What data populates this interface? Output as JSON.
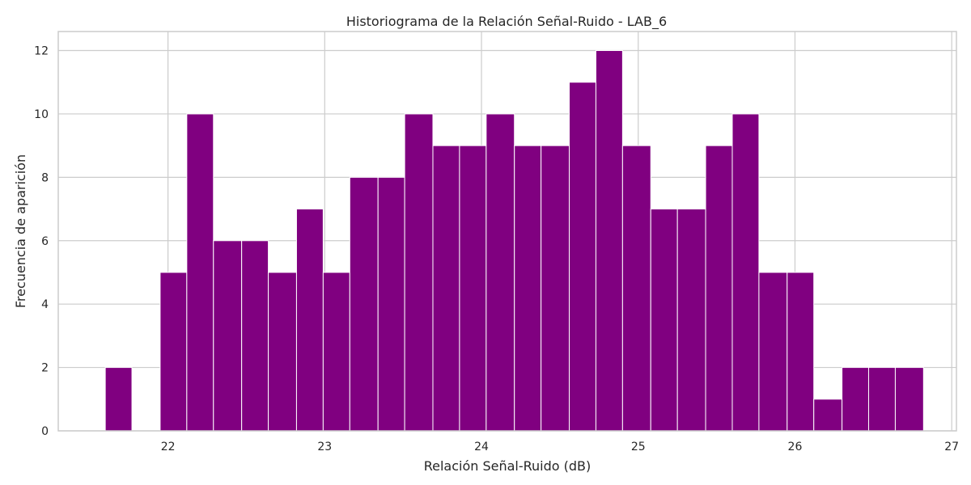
{
  "chart_data": {
    "type": "bar",
    "title": "Historiograma de la Relación Señal-Ruido - LAB_6",
    "xlabel": "Relación Señal-Ruido (dB)",
    "ylabel": "Frecuencia de aparición",
    "xlim": [
      21.3,
      27.03
    ],
    "ylim": [
      0,
      12.6
    ],
    "xticks": [
      22,
      23,
      24,
      25,
      26,
      27
    ],
    "yticks": [
      0,
      2,
      4,
      6,
      8,
      10,
      12
    ],
    "grid": true,
    "bar_color": "#800080",
    "bins": [
      {
        "x0": 21.6,
        "x1": 21.77,
        "value": 2
      },
      {
        "x0": 21.77,
        "x1": 21.95,
        "value": 0
      },
      {
        "x0": 21.95,
        "x1": 22.12,
        "value": 5
      },
      {
        "x0": 22.12,
        "x1": 22.29,
        "value": 10
      },
      {
        "x0": 22.29,
        "x1": 22.47,
        "value": 6
      },
      {
        "x0": 22.47,
        "x1": 22.64,
        "value": 6
      },
      {
        "x0": 22.64,
        "x1": 22.82,
        "value": 5
      },
      {
        "x0": 22.82,
        "x1": 22.99,
        "value": 7
      },
      {
        "x0": 22.99,
        "x1": 23.16,
        "value": 5
      },
      {
        "x0": 23.16,
        "x1": 23.34,
        "value": 8
      },
      {
        "x0": 23.34,
        "x1": 23.51,
        "value": 8
      },
      {
        "x0": 23.51,
        "x1": 23.69,
        "value": 10
      },
      {
        "x0": 23.69,
        "x1": 23.86,
        "value": 9
      },
      {
        "x0": 23.86,
        "x1": 24.03,
        "value": 9
      },
      {
        "x0": 24.03,
        "x1": 24.21,
        "value": 10
      },
      {
        "x0": 24.21,
        "x1": 24.38,
        "value": 9
      },
      {
        "x0": 24.38,
        "x1": 24.56,
        "value": 9
      },
      {
        "x0": 24.56,
        "x1": 24.73,
        "value": 11
      },
      {
        "x0": 24.73,
        "x1": 24.9,
        "value": 12
      },
      {
        "x0": 24.9,
        "x1": 25.08,
        "value": 9
      },
      {
        "x0": 25.08,
        "x1": 25.25,
        "value": 7
      },
      {
        "x0": 25.25,
        "x1": 25.43,
        "value": 7
      },
      {
        "x0": 25.43,
        "x1": 25.6,
        "value": 9
      },
      {
        "x0": 25.6,
        "x1": 25.77,
        "value": 10
      },
      {
        "x0": 25.77,
        "x1": 25.95,
        "value": 5
      },
      {
        "x0": 25.95,
        "x1": 26.12,
        "value": 5
      },
      {
        "x0": 26.12,
        "x1": 26.3,
        "value": 1
      },
      {
        "x0": 26.3,
        "x1": 26.47,
        "value": 2
      },
      {
        "x0": 26.47,
        "x1": 26.64,
        "value": 2
      },
      {
        "x0": 26.64,
        "x1": 26.82,
        "value": 2
      }
    ]
  }
}
